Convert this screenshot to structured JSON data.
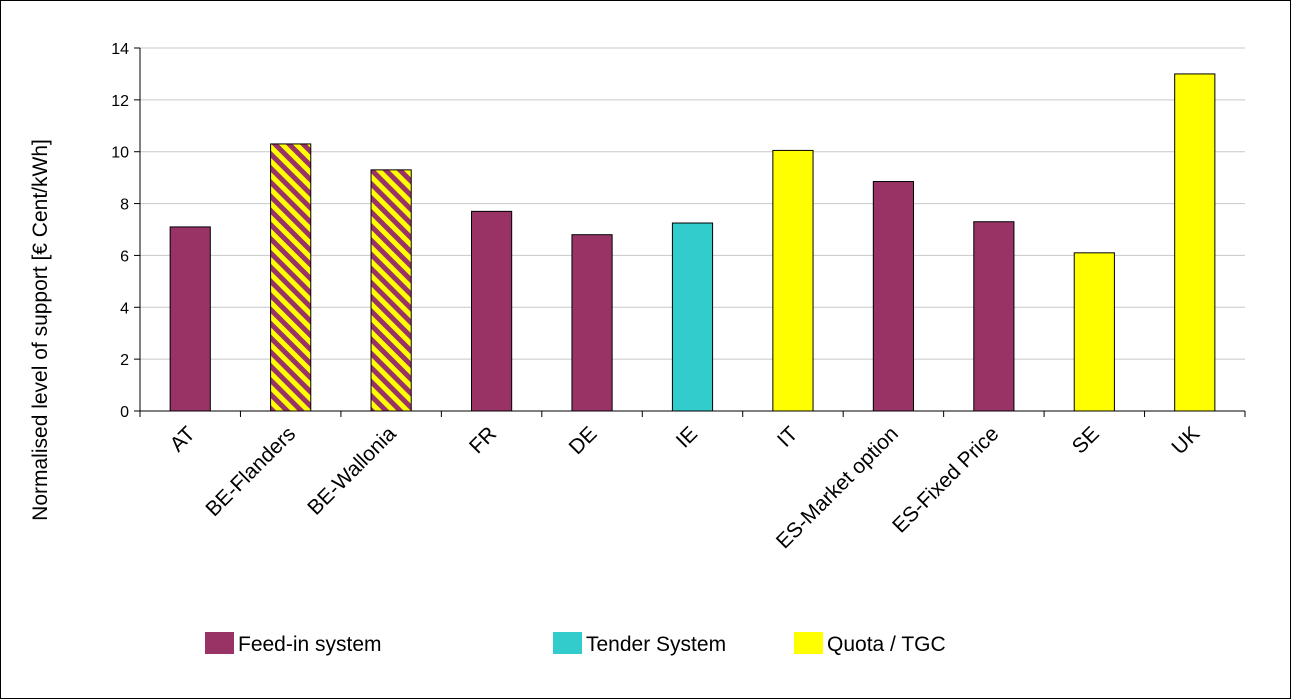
{
  "chart_data": {
    "type": "bar",
    "title": "",
    "xlabel": "",
    "ylabel": "Normalised level of support [€ Cent/kWh]",
    "ylim": [
      0,
      14
    ],
    "ytick_step": 2,
    "grid": true,
    "legend_position": "bottom",
    "categories": [
      "AT",
      "BE-Flanders",
      "BE-Wallonia",
      "FR",
      "DE",
      "IE",
      "IT",
      "ES-Market option",
      "ES-Fixed Price",
      "SE",
      "UK"
    ],
    "values": [
      7.1,
      10.3,
      9.3,
      7.7,
      6.8,
      7.25,
      10.05,
      8.85,
      7.3,
      6.1,
      13.0
    ],
    "systems": [
      "feed-in",
      "mixed",
      "mixed",
      "feed-in",
      "feed-in",
      "tender",
      "quota",
      "feed-in",
      "feed-in",
      "quota",
      "quota"
    ],
    "legend": [
      {
        "key": "feed-in",
        "label": "Feed-in system",
        "color": "#993366"
      },
      {
        "key": "tender",
        "label": "Tender System",
        "color": "#33CCCC"
      },
      {
        "key": "quota",
        "label": "Quota / TGC",
        "color": "#FFFF00"
      }
    ]
  }
}
